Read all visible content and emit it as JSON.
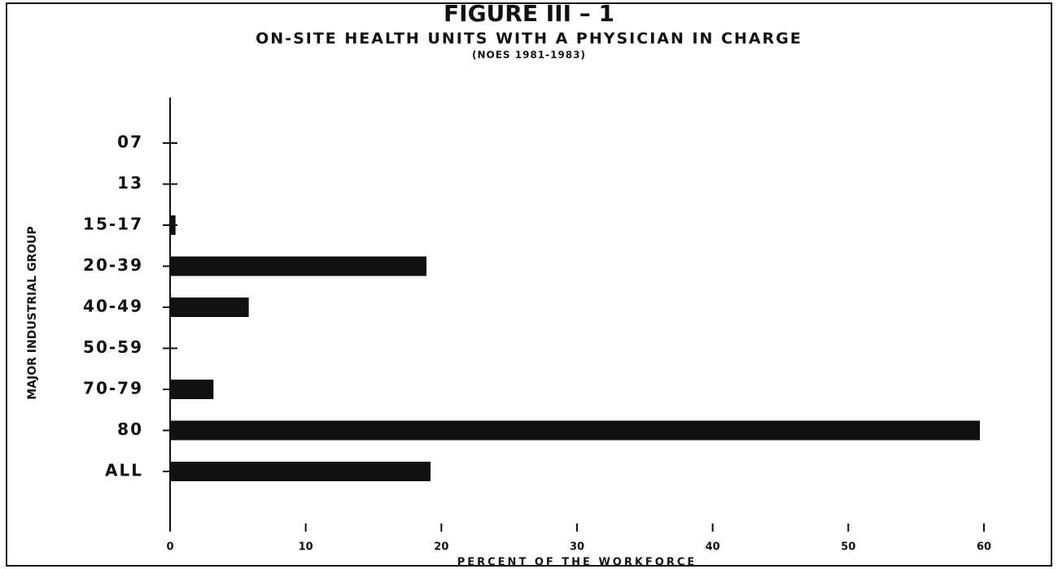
{
  "chart_data": {
    "type": "bar",
    "orientation": "horizontal",
    "title": "FIGURE III – 1",
    "subtitle": "ON-SITE HEALTH UNITS WITH A PHYSICIAN IN CHARGE",
    "note": "(NOES 1981-1983)",
    "y_label": "MAJOR INDUSTRIAL GROUP",
    "x_label": "PERCENT OF THE WORKFORCE",
    "categories": [
      "07",
      "13",
      "15-17",
      "20-39",
      "40-49",
      "50-59",
      "70-79",
      "80",
      "ALL"
    ],
    "values": [
      0,
      0,
      0.4,
      18.9,
      5.8,
      0,
      3.2,
      59.7,
      19.2
    ],
    "color": "#111111",
    "xlim": [
      0,
      60
    ],
    "xticks": [
      0,
      10,
      20,
      30,
      40,
      50,
      60
    ]
  }
}
